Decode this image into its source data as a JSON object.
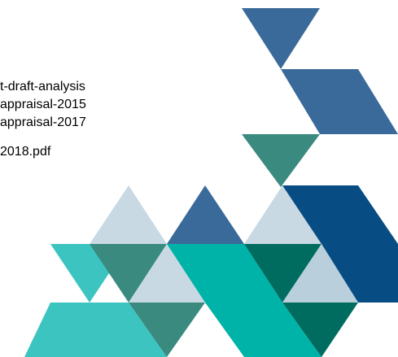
{
  "lines": [
    "t-draft-analysis",
    "appraisal-2015",
    "appraisal-2017",
    "2018.pdf"
  ]
}
